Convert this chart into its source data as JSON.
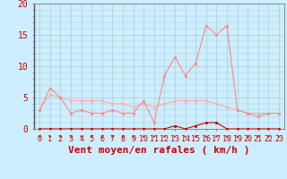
{
  "x": [
    0,
    1,
    2,
    3,
    4,
    5,
    6,
    7,
    8,
    9,
    10,
    11,
    12,
    13,
    14,
    15,
    16,
    17,
    18,
    19,
    20,
    21,
    22,
    23
  ],
  "vent_moyen": [
    0,
    0,
    0,
    0,
    0,
    0,
    0,
    0,
    0,
    0,
    0,
    0,
    0,
    0.5,
    0,
    0.5,
    1,
    1,
    0,
    0,
    0,
    0,
    0,
    0
  ],
  "rafales": [
    3,
    6.5,
    5,
    2.5,
    3,
    2.5,
    2.5,
    3,
    2.5,
    2.5,
    4.5,
    1,
    8.5,
    11.5,
    8.5,
    10.5,
    16.5,
    15,
    16.5,
    3,
    2.5,
    2,
    2.5,
    2.5
  ],
  "moyenne_glissante": [
    3.0,
    5.5,
    5.0,
    4.5,
    4.5,
    4.5,
    4.5,
    4.0,
    4.0,
    3.5,
    4.0,
    3.5,
    4.0,
    4.5,
    4.5,
    4.5,
    4.5,
    4.0,
    3.5,
    3.0,
    2.5,
    2.5,
    2.5,
    2.5
  ],
  "bg_color": "#cceeff",
  "grid_color": "#aacccc",
  "line_color_rafales": "#ff8888",
  "line_color_moyen": "#cc0000",
  "line_color_moyenne": "#ffaaaa",
  "xlabel": "Vent moyen/en rafales ( km/h )",
  "ylim": [
    0,
    20
  ],
  "xlim": [
    -0.5,
    23.5
  ],
  "yticks": [
    0,
    5,
    10,
    15,
    20
  ],
  "xticks": [
    0,
    1,
    2,
    3,
    4,
    5,
    6,
    7,
    8,
    9,
    10,
    11,
    12,
    13,
    14,
    15,
    16,
    17,
    18,
    19,
    20,
    21,
    22,
    23
  ],
  "tick_color": "#cc0000",
  "tick_fontsize": 6,
  "xlabel_fontsize": 8
}
